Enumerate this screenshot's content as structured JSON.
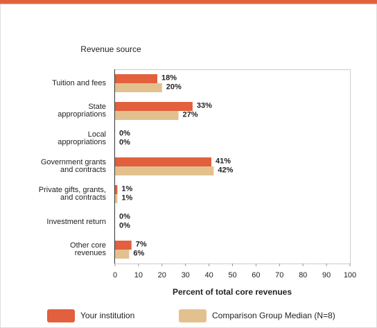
{
  "chart_data": {
    "type": "bar",
    "orientation": "horizontal",
    "title": "Revenue source",
    "xlabel": "Percent of total core revenues",
    "categories": [
      "Tuition and fees",
      "State\nappropriations",
      "Local\nappropriations",
      "Government grants\nand contracts",
      "Private gifts, grants,\nand contracts",
      "Investment return",
      "Other core\nrevenues"
    ],
    "series": [
      {
        "name": "Your institution",
        "color": "#e2603d",
        "values": [
          18,
          33,
          0,
          41,
          1,
          0,
          7
        ],
        "value_labels": [
          "18%",
          "33%",
          "0%",
          "41%",
          "1%",
          "0%",
          "7%"
        ]
      },
      {
        "name": "Comparison Group Median (N=8)",
        "color": "#e3c18f",
        "values": [
          20,
          27,
          0,
          42,
          1,
          0,
          6
        ],
        "value_labels": [
          "20%",
          "27%",
          "0%",
          "42%",
          "1%",
          "0%",
          "6%"
        ]
      }
    ],
    "xlim": [
      0,
      100
    ],
    "xticks": [
      0,
      10,
      20,
      30,
      40,
      50,
      60,
      70,
      80,
      90,
      100
    ],
    "grid": false,
    "legend": "bottom"
  }
}
